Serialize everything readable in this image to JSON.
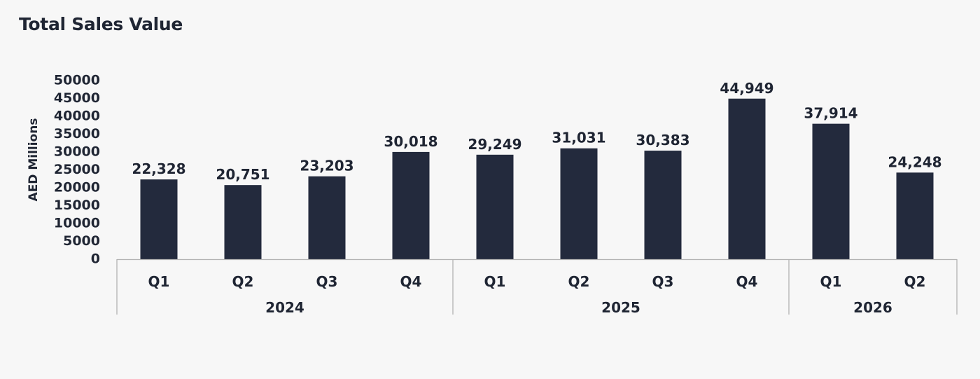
{
  "chart_data": {
    "type": "bar",
    "title": "Total Sales Value",
    "ylabel": "AED Millions",
    "xlabel": "",
    "ylim": [
      0,
      50000
    ],
    "yticks": [
      0,
      5000,
      10000,
      15000,
      20000,
      25000,
      30000,
      35000,
      40000,
      45000,
      50000
    ],
    "grid": false,
    "categories": [
      "Q1",
      "Q2",
      "Q3",
      "Q4",
      "Q1",
      "Q2",
      "Q3",
      "Q4",
      "Q1",
      "Q2"
    ],
    "groups": [
      {
        "label": "2024",
        "count": 4
      },
      {
        "label": "2025",
        "count": 4
      },
      {
        "label": "2026",
        "count": 2
      }
    ],
    "values": [
      22328,
      20751,
      23203,
      30018,
      29249,
      31031,
      30383,
      44949,
      37914,
      24248
    ],
    "value_labels": [
      "22,328",
      "20,751",
      "23,203",
      "30,018",
      "29,249",
      "31,031",
      "30,383",
      "44,949",
      "37,914",
      "24,248"
    ],
    "bar_color": "#232a3d",
    "axis_color": "#b3b3b3"
  }
}
